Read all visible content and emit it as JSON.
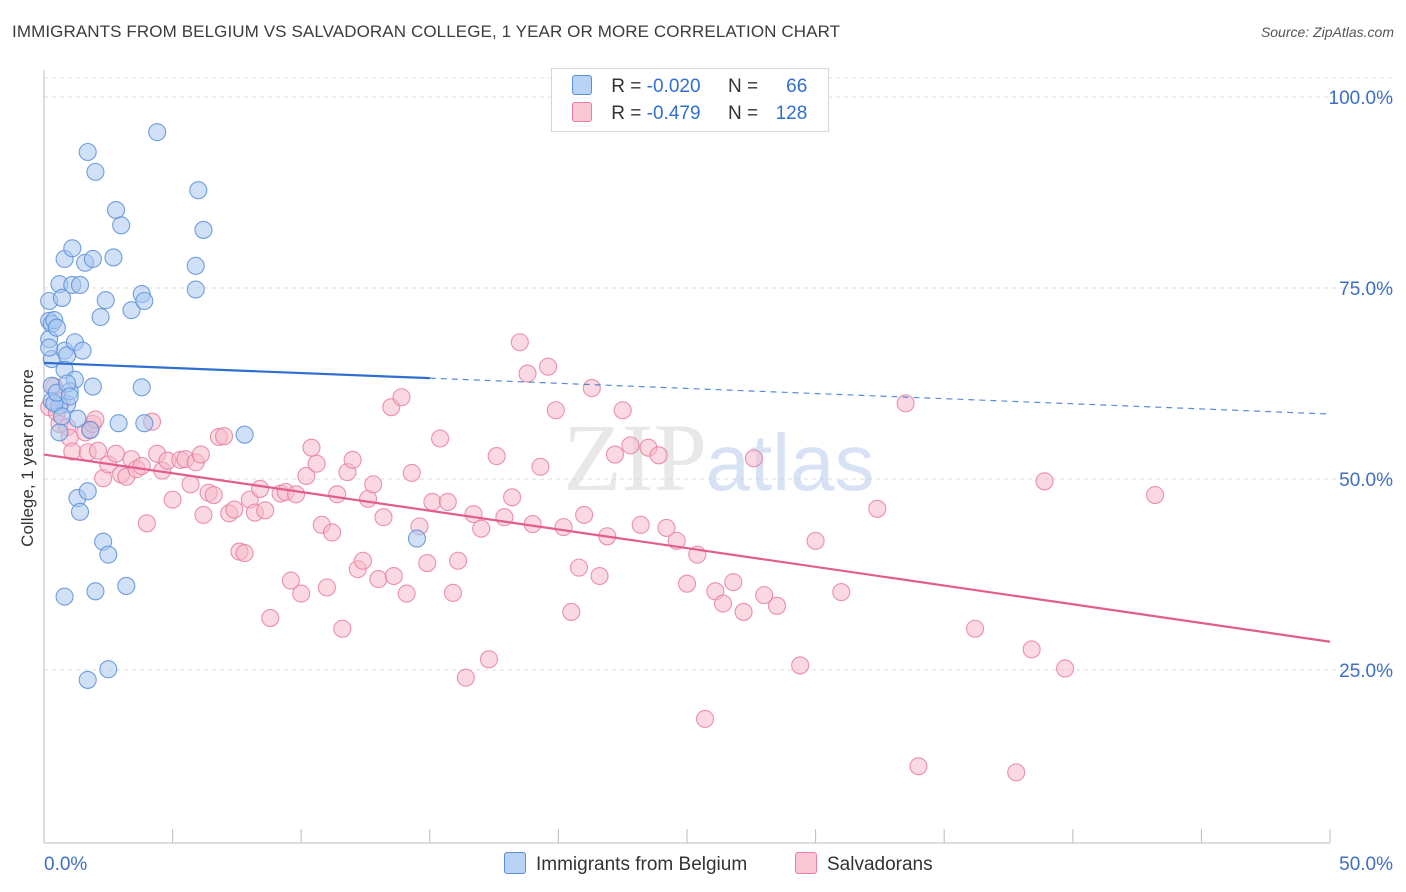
{
  "title": "IMMIGRANTS FROM BELGIUM VS SALVADORAN COLLEGE, 1 YEAR OR MORE CORRELATION CHART",
  "source": "Source: ZipAtlas.com",
  "watermark": {
    "zip": "ZIP",
    "atlas": "atlas"
  },
  "colors": {
    "blue_fill": "#aac8f0",
    "blue_stroke": "#5b8fd6",
    "blue_line": "#2f6fcf",
    "pink_fill": "#f6b9cb",
    "pink_stroke": "#e77fa1",
    "pink_line": "#e35d8c",
    "axis_text": "#3d6fc4"
  },
  "legend": {
    "rows": [
      {
        "r_label": "R = ",
        "r_value": "-0.020",
        "n_label": "N = ",
        "n_value": "66"
      },
      {
        "r_label": "R = ",
        "r_value": "-0.479",
        "n_label": "N = ",
        "n_value": "128"
      }
    ]
  },
  "chart_data": {
    "type": "scatter",
    "title": "IMMIGRANTS FROM BELGIUM VS SALVADORAN COLLEGE, 1 YEAR OR MORE CORRELATION CHART",
    "xlabel": "",
    "ylabel": "College, 1 year or more",
    "xlim": [
      0,
      50
    ],
    "ylim": [
      0,
      105
    ],
    "x_tick_labels": [
      "0.0%",
      "50.0%"
    ],
    "y_tick_labels": [
      "100.0%",
      "75.0%",
      "50.0%",
      "25.0%"
    ],
    "y_tick_values": [
      100,
      75,
      50,
      25
    ],
    "grid": true,
    "legend_position": "top-center",
    "series": [
      {
        "name": "Immigrants from Belgium",
        "color": "blue",
        "trend": {
          "x": [
            0,
            15
          ],
          "y": [
            65.2,
            63.2
          ],
          "dashed_to": [
            50,
            58.5
          ]
        },
        "points": [
          [
            0.2,
            73.3
          ],
          [
            0.2,
            70.7
          ],
          [
            0.3,
            70.3
          ],
          [
            0.4,
            70.8
          ],
          [
            0.2,
            68.3
          ],
          [
            0.3,
            65.7
          ],
          [
            0.3,
            62.2
          ],
          [
            0.3,
            60.2
          ],
          [
            0.5,
            69.8
          ],
          [
            0.6,
            75.5
          ],
          [
            0.7,
            73.7
          ],
          [
            0.8,
            78.8
          ],
          [
            0.8,
            66.8
          ],
          [
            0.9,
            66.2
          ],
          [
            0.8,
            64.3
          ],
          [
            0.9,
            59.8
          ],
          [
            0.6,
            56.1
          ],
          [
            0.6,
            59.6
          ],
          [
            1.1,
            80.2
          ],
          [
            1.1,
            75.4
          ],
          [
            1.2,
            67.9
          ],
          [
            1.2,
            63.0
          ],
          [
            1.3,
            57.9
          ],
          [
            1.3,
            47.5
          ],
          [
            1.4,
            75.4
          ],
          [
            1.5,
            66.8
          ],
          [
            1.4,
            45.7
          ],
          [
            1.6,
            78.3
          ],
          [
            1.7,
            92.8
          ],
          [
            1.7,
            48.4
          ],
          [
            1.8,
            56.4
          ],
          [
            1.9,
            62.1
          ],
          [
            1.9,
            78.8
          ],
          [
            2.0,
            90.2
          ],
          [
            2.2,
            71.2
          ],
          [
            2.3,
            41.8
          ],
          [
            2.4,
            73.4
          ],
          [
            2.5,
            40.1
          ],
          [
            2.5,
            25.1
          ],
          [
            2.7,
            79.0
          ],
          [
            2.8,
            85.2
          ],
          [
            2.9,
            57.3
          ],
          [
            3.0,
            83.2
          ],
          [
            3.2,
            36.0
          ],
          [
            3.4,
            72.1
          ],
          [
            3.8,
            74.2
          ],
          [
            3.8,
            62.0
          ],
          [
            3.9,
            73.3
          ],
          [
            3.9,
            57.3
          ],
          [
            4.4,
            95.4
          ],
          [
            5.9,
            77.9
          ],
          [
            5.9,
            74.8
          ],
          [
            6.0,
            87.8
          ],
          [
            6.2,
            82.6
          ],
          [
            7.8,
            55.8
          ],
          [
            14.5,
            42.2
          ],
          [
            0.8,
            34.6
          ],
          [
            2.0,
            35.3
          ],
          [
            1.7,
            23.7
          ],
          [
            1.0,
            61.5
          ],
          [
            0.4,
            59.9
          ],
          [
            0.5,
            61.3
          ],
          [
            0.7,
            58.2
          ],
          [
            0.2,
            67.2
          ],
          [
            0.9,
            62.5
          ],
          [
            1.0,
            60.8
          ]
        ]
      },
      {
        "name": "Salvadorans",
        "color": "pink",
        "trend": {
          "x": [
            0,
            50
          ],
          "y": [
            53.2,
            28.7
          ]
        },
        "points": [
          [
            0.2,
            59.4
          ],
          [
            0.4,
            62.1
          ],
          [
            0.5,
            58.7
          ],
          [
            0.6,
            57.2
          ],
          [
            0.7,
            60.2
          ],
          [
            0.9,
            56.8
          ],
          [
            1.0,
            55.4
          ],
          [
            1.1,
            53.6
          ],
          [
            1.6,
            56.1
          ],
          [
            1.7,
            53.5
          ],
          [
            1.8,
            56.5
          ],
          [
            1.9,
            57.2
          ],
          [
            2.0,
            57.8
          ],
          [
            2.1,
            53.7
          ],
          [
            2.3,
            50.1
          ],
          [
            2.5,
            51.9
          ],
          [
            2.8,
            53.3
          ],
          [
            3.0,
            50.6
          ],
          [
            3.2,
            50.3
          ],
          [
            3.4,
            52.6
          ],
          [
            3.6,
            51.3
          ],
          [
            3.8,
            51.7
          ],
          [
            4.0,
            44.2
          ],
          [
            4.2,
            57.5
          ],
          [
            4.4,
            53.3
          ],
          [
            4.6,
            51.1
          ],
          [
            4.8,
            52.4
          ],
          [
            5.0,
            47.3
          ],
          [
            5.3,
            52.5
          ],
          [
            5.5,
            52.6
          ],
          [
            5.7,
            49.3
          ],
          [
            5.9,
            52.2
          ],
          [
            6.1,
            53.2
          ],
          [
            6.2,
            45.3
          ],
          [
            6.4,
            48.2
          ],
          [
            6.6,
            47.9
          ],
          [
            6.8,
            55.5
          ],
          [
            7.0,
            55.6
          ],
          [
            7.2,
            45.5
          ],
          [
            7.4,
            46.0
          ],
          [
            7.6,
            40.5
          ],
          [
            7.8,
            40.3
          ],
          [
            8.0,
            47.3
          ],
          [
            8.2,
            45.6
          ],
          [
            8.4,
            48.7
          ],
          [
            8.6,
            45.9
          ],
          [
            8.8,
            31.8
          ],
          [
            9.2,
            48.1
          ],
          [
            9.4,
            48.3
          ],
          [
            9.6,
            36.7
          ],
          [
            9.8,
            48.0
          ],
          [
            10.0,
            35.0
          ],
          [
            10.2,
            50.4
          ],
          [
            10.4,
            54.1
          ],
          [
            10.6,
            52.0
          ],
          [
            10.8,
            44.0
          ],
          [
            11.0,
            35.8
          ],
          [
            11.2,
            43.0
          ],
          [
            11.4,
            48.0
          ],
          [
            11.6,
            30.4
          ],
          [
            11.8,
            50.9
          ],
          [
            12.0,
            52.5
          ],
          [
            12.2,
            38.2
          ],
          [
            12.4,
            39.3
          ],
          [
            12.6,
            47.4
          ],
          [
            12.8,
            49.3
          ],
          [
            13.0,
            36.9
          ],
          [
            13.2,
            45.0
          ],
          [
            13.5,
            59.4
          ],
          [
            13.6,
            37.3
          ],
          [
            13.9,
            60.7
          ],
          [
            14.1,
            35.0
          ],
          [
            14.3,
            50.8
          ],
          [
            14.6,
            43.8
          ],
          [
            14.9,
            39.0
          ],
          [
            15.1,
            47.0
          ],
          [
            15.4,
            55.3
          ],
          [
            15.7,
            47.0
          ],
          [
            15.9,
            35.1
          ],
          [
            16.1,
            39.3
          ],
          [
            16.4,
            24.0
          ],
          [
            16.7,
            45.4
          ],
          [
            17.0,
            43.5
          ],
          [
            17.3,
            26.4
          ],
          [
            17.6,
            53.0
          ],
          [
            17.9,
            45.0
          ],
          [
            18.2,
            47.6
          ],
          [
            18.5,
            67.9
          ],
          [
            18.8,
            63.8
          ],
          [
            19.0,
            44.1
          ],
          [
            19.3,
            51.6
          ],
          [
            19.6,
            64.7
          ],
          [
            19.9,
            59.0
          ],
          [
            20.2,
            43.7
          ],
          [
            20.5,
            32.6
          ],
          [
            20.8,
            38.4
          ],
          [
            21.0,
            45.3
          ],
          [
            21.3,
            61.9
          ],
          [
            21.6,
            37.3
          ],
          [
            21.9,
            42.5
          ],
          [
            22.2,
            53.2
          ],
          [
            22.5,
            59.0
          ],
          [
            22.8,
            54.4
          ],
          [
            23.2,
            44.0
          ],
          [
            23.5,
            54.1
          ],
          [
            23.9,
            53.1
          ],
          [
            24.2,
            43.6
          ],
          [
            24.6,
            41.9
          ],
          [
            25.0,
            36.3
          ],
          [
            25.4,
            40.1
          ],
          [
            25.7,
            18.6
          ],
          [
            26.1,
            35.3
          ],
          [
            26.4,
            33.7
          ],
          [
            26.8,
            36.5
          ],
          [
            27.2,
            32.6
          ],
          [
            27.6,
            52.7
          ],
          [
            28.0,
            34.8
          ],
          [
            28.5,
            33.4
          ],
          [
            29.4,
            25.6
          ],
          [
            30.0,
            41.9
          ],
          [
            31.0,
            35.2
          ],
          [
            32.4,
            46.1
          ],
          [
            33.5,
            59.9
          ],
          [
            34.0,
            12.4
          ],
          [
            36.2,
            30.4
          ],
          [
            37.8,
            11.6
          ],
          [
            38.4,
            27.7
          ],
          [
            38.9,
            49.7
          ],
          [
            39.7,
            25.2
          ],
          [
            43.2,
            47.9
          ]
        ]
      }
    ]
  },
  "bottom_legend": [
    {
      "label": "Immigrants from Belgium"
    },
    {
      "label": "Salvadorans"
    }
  ]
}
